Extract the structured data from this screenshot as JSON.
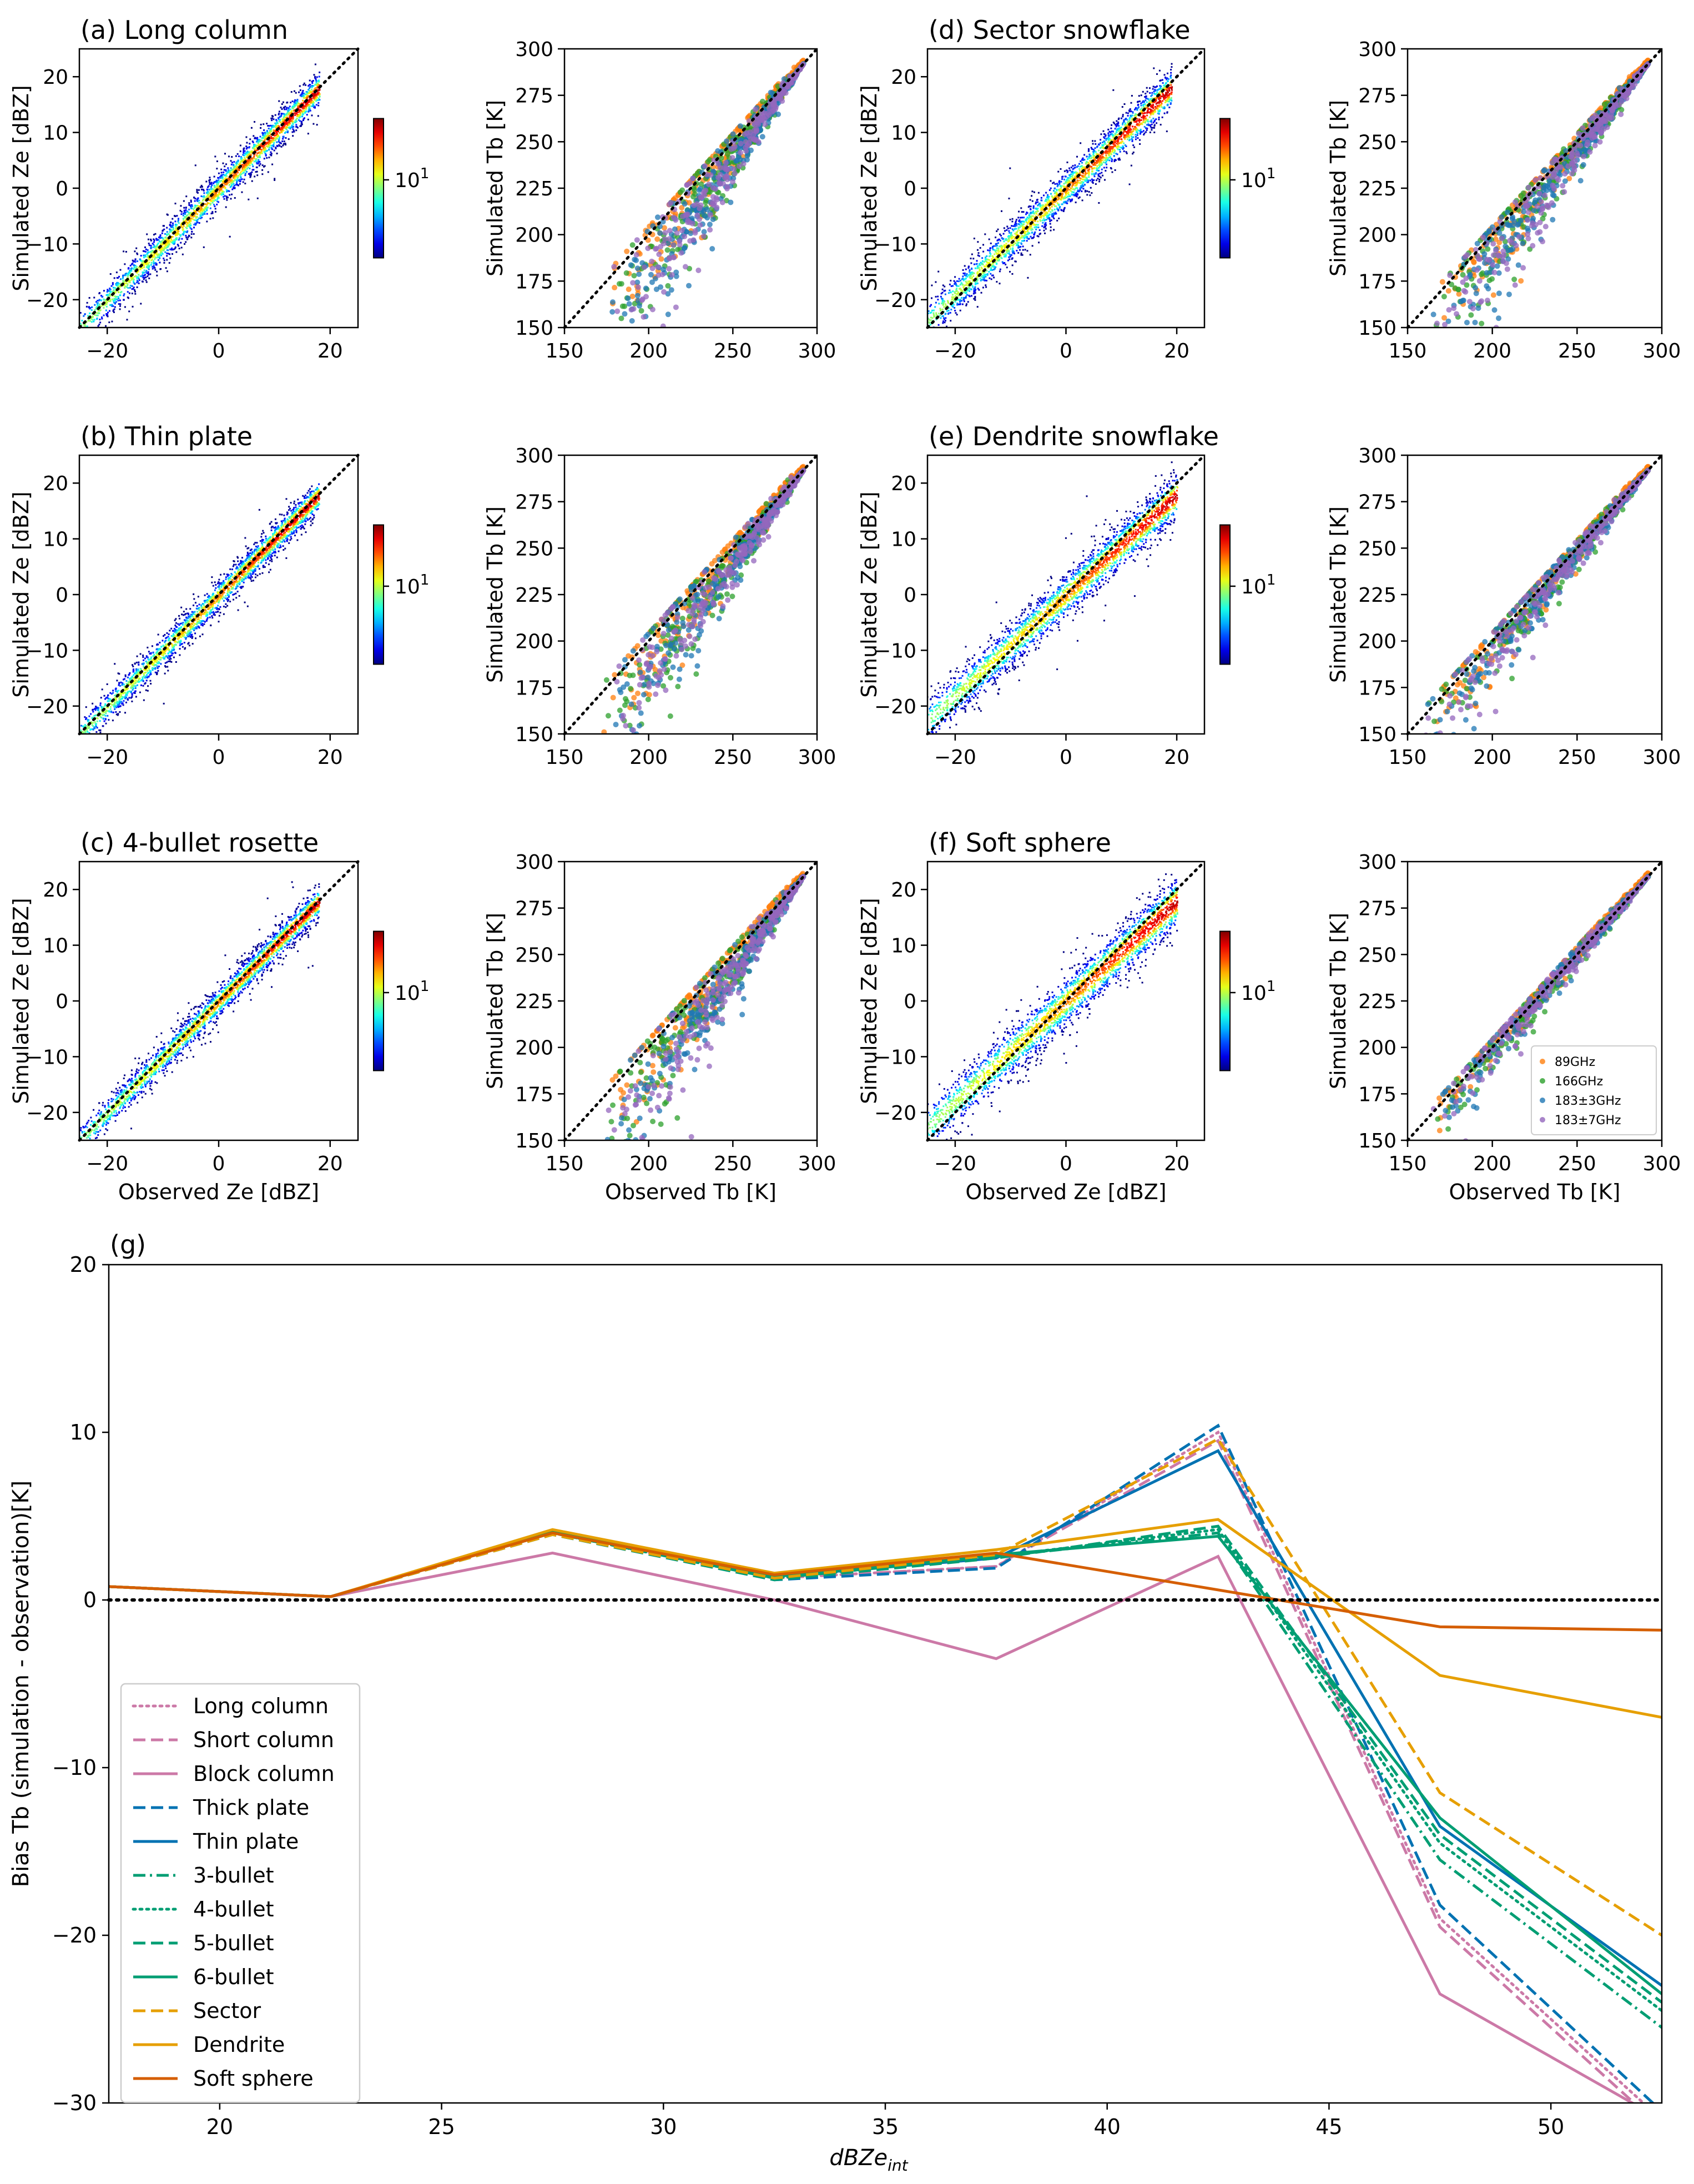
{
  "figure": {
    "colorbar_label": "10",
    "colorbar_exponent": "1"
  },
  "scatter_panels": {
    "ze_xlabel": "Observed Ze [dBZ]",
    "ze_ylabel": "Simulated Ze [dBZ]",
    "tb_xlabel": "Observed Tb [K]",
    "tb_ylabel": "Simulated Tb [K]",
    "ze_ticks": [
      "-20",
      "-10",
      "0",
      "10",
      "20"
    ],
    "ze_xticks": [
      "-20",
      "0",
      "20"
    ],
    "tb_ticks": [
      "150",
      "175",
      "200",
      "225",
      "250",
      "275",
      "300"
    ],
    "tb_xticks": [
      "150",
      "200",
      "250",
      "300"
    ],
    "legend": [
      "89GHz",
      "166GHz",
      "183±3GHz",
      "183±7GHz"
    ],
    "colors": {
      "89GHz": "#ff7f0e",
      "166GHz": "#2ca02c",
      "183±3GHz": "#1f77b4",
      "183±7GHz": "#9467bd"
    }
  },
  "chart_data": [
    {
      "panel": "a",
      "type": "heatmap",
      "title": "(a) Long column",
      "xlabel": "",
      "ylabel": "Simulated Ze [dBZ]",
      "xlim": [
        -25,
        25
      ],
      "ylim": [
        -25,
        25
      ],
      "relation": {
        "slope": 1.0,
        "spread": 1.2,
        "xmax": 18
      },
      "colorbar": {
        "scale": "log",
        "tick": "10^1"
      }
    },
    {
      "panel": "a2",
      "type": "scatter",
      "title": "",
      "xlabel": "",
      "ylabel": "Simulated Tb [K]",
      "xlim": [
        150,
        300
      ],
      "ylim": [
        150,
        300
      ],
      "relation": {
        "bias": -25,
        "spread": 22,
        "xmin": 175
      }
    },
    {
      "panel": "d",
      "type": "heatmap",
      "title": "(d) Sector snowflake",
      "xlabel": "",
      "ylabel": "Simulated Ze [dBZ]",
      "xlim": [
        -25,
        25
      ],
      "ylim": [
        -25,
        25
      ],
      "relation": {
        "slope": 0.95,
        "spread": 1.4,
        "xmax": 19
      },
      "colorbar": {
        "scale": "log",
        "tick": "10^1"
      }
    },
    {
      "panel": "d2",
      "type": "scatter",
      "title": "",
      "xlabel": "",
      "ylabel": "Simulated Tb [K]",
      "xlim": [
        150,
        300
      ],
      "ylim": [
        150,
        300
      ],
      "relation": {
        "bias": -18,
        "spread": 20,
        "xmin": 165
      }
    },
    {
      "panel": "b",
      "type": "heatmap",
      "title": "(b) Thin plate",
      "xlabel": "",
      "ylabel": "Simulated Ze [dBZ]",
      "xlim": [
        -25,
        25
      ],
      "ylim": [
        -25,
        25
      ],
      "relation": {
        "slope": 1.0,
        "spread": 1.1,
        "xmax": 18
      },
      "colorbar": {
        "scale": "log",
        "tick": "10^1"
      }
    },
    {
      "panel": "b2",
      "type": "scatter",
      "title": "",
      "xlabel": "",
      "ylabel": "Simulated Tb [K]",
      "xlim": [
        150,
        300
      ],
      "ylim": [
        150,
        300
      ],
      "relation": {
        "bias": -24,
        "spread": 22,
        "xmin": 172
      }
    },
    {
      "panel": "e",
      "type": "heatmap",
      "title": "(e) Dendrite snowflake",
      "xlabel": "",
      "ylabel": "Simulated Ze [dBZ]",
      "xlim": [
        -25,
        25
      ],
      "ylim": [
        -25,
        25
      ],
      "relation": {
        "slope": 0.9,
        "spread": 1.6,
        "xmax": 20
      },
      "colorbar": {
        "scale": "log",
        "tick": "10^1"
      }
    },
    {
      "panel": "e2",
      "type": "scatter",
      "title": "",
      "xlabel": "",
      "ylabel": "Simulated Tb [K]",
      "xlim": [
        150,
        300
      ],
      "ylim": [
        150,
        300
      ],
      "relation": {
        "bias": -8,
        "spread": 16,
        "xmin": 160
      }
    },
    {
      "panel": "c",
      "type": "heatmap",
      "title": "(c) 4-bullet rosette",
      "xlabel": "Observed Ze [dBZ]",
      "ylabel": "Simulated Ze [dBZ]",
      "xlim": [
        -25,
        25
      ],
      "ylim": [
        -25,
        25
      ],
      "relation": {
        "slope": 1.0,
        "spread": 1.1,
        "xmax": 18
      },
      "colorbar": {
        "scale": "log",
        "tick": "10^1"
      }
    },
    {
      "panel": "c2",
      "type": "scatter",
      "title": "",
      "xlabel": "Observed Tb [K]",
      "ylabel": "Simulated Tb [K]",
      "xlim": [
        150,
        300
      ],
      "ylim": [
        150,
        300
      ],
      "relation": {
        "bias": -26,
        "spread": 22,
        "xmin": 175
      }
    },
    {
      "panel": "f",
      "type": "heatmap",
      "title": "(f) Soft sphere",
      "xlabel": "Observed Ze [dBZ]",
      "ylabel": "Simulated Ze [dBZ]",
      "xlim": [
        -25,
        25
      ],
      "ylim": [
        -25,
        25
      ],
      "relation": {
        "slope": 0.9,
        "spread": 1.8,
        "xmax": 20
      },
      "colorbar": {
        "scale": "log",
        "tick": "10^1"
      }
    },
    {
      "panel": "f2",
      "type": "scatter",
      "title": "",
      "xlabel": "Observed Tb [K]",
      "ylabel": "Simulated Tb [K]",
      "xlim": [
        150,
        300
      ],
      "ylim": [
        150,
        300
      ],
      "relation": {
        "bias": -3,
        "spread": 10,
        "xmin": 165
      },
      "legend": [
        "89GHz",
        "166GHz",
        "183±3GHz",
        "183±7GHz"
      ]
    },
    {
      "panel": "g",
      "type": "line",
      "title": "(g)",
      "xlabel": "dBZe",
      "xlabel_sub": "int",
      "ylabel": "Bias Tb  (simulation - observation)[K]",
      "xlim": [
        17.5,
        52.5
      ],
      "ylim": [
        -30,
        20
      ],
      "xticks": [
        "20",
        "25",
        "30",
        "35",
        "40",
        "45",
        "50"
      ],
      "yticks": [
        "-30",
        "-20",
        "-10",
        "0",
        "10",
        "20"
      ],
      "x": [
        17.5,
        22.5,
        27.5,
        32.5,
        37.5,
        42.5,
        47.5,
        52.5
      ],
      "series": [
        {
          "name": "Long column",
          "color": "#cc79a7",
          "dash": "dotted",
          "values": [
            0.8,
            0.2,
            4.0,
            1.3,
            2.0,
            10.0,
            -19.0,
            -31.0
          ]
        },
        {
          "name": "Short column",
          "color": "#cc79a7",
          "dash": "dashed",
          "values": [
            0.8,
            0.2,
            4.0,
            1.3,
            2.0,
            9.5,
            -19.5,
            -31.5
          ]
        },
        {
          "name": "Block column",
          "color": "#cc79a7",
          "dash": "solid",
          "values": [
            0.8,
            0.2,
            2.8,
            0.0,
            -3.5,
            2.6,
            -23.5,
            -31.0
          ]
        },
        {
          "name": "Thick plate",
          "color": "#0072b2",
          "dash": "dashed",
          "values": [
            0.8,
            0.2,
            3.9,
            1.2,
            1.9,
            10.4,
            -18.2,
            -30.5
          ]
        },
        {
          "name": "Thin plate",
          "color": "#0072b2",
          "dash": "solid",
          "values": [
            0.8,
            0.2,
            4.1,
            1.4,
            2.5,
            8.9,
            -13.5,
            -23.0
          ]
        },
        {
          "name": "3-bullet",
          "color": "#009e73",
          "dash": "dashdot",
          "values": [
            0.8,
            0.2,
            4.0,
            1.3,
            2.6,
            4.0,
            -15.5,
            -25.5
          ]
        },
        {
          "name": "4-bullet",
          "color": "#009e73",
          "dash": "dotted",
          "values": [
            0.8,
            0.2,
            4.0,
            1.3,
            2.6,
            4.2,
            -14.5,
            -24.5
          ]
        },
        {
          "name": "5-bullet",
          "color": "#009e73",
          "dash": "dashed",
          "values": [
            0.8,
            0.2,
            3.9,
            1.2,
            2.5,
            4.4,
            -14.0,
            -24.0
          ]
        },
        {
          "name": "6-bullet",
          "color": "#009e73",
          "dash": "solid",
          "values": [
            0.8,
            0.2,
            4.1,
            1.4,
            2.7,
            3.8,
            -13.0,
            -23.5
          ]
        },
        {
          "name": "Sector",
          "color": "#e69f00",
          "dash": "dashed",
          "values": [
            0.8,
            0.2,
            3.9,
            1.3,
            2.7,
            9.6,
            -11.5,
            -20.0
          ]
        },
        {
          "name": "Dendrite",
          "color": "#e69f00",
          "dash": "solid",
          "values": [
            0.8,
            0.2,
            4.2,
            1.6,
            3.0,
            4.8,
            -4.5,
            -7.0
          ]
        },
        {
          "name": "Soft sphere",
          "color": "#d55e00",
          "dash": "solid",
          "values": [
            0.8,
            0.2,
            4.0,
            1.5,
            2.8,
            0.6,
            -1.6,
            -1.8
          ]
        }
      ],
      "reference_line": {
        "y": 0,
        "style": "dotted",
        "color": "#000000"
      },
      "legend_position": "lower-left"
    }
  ]
}
